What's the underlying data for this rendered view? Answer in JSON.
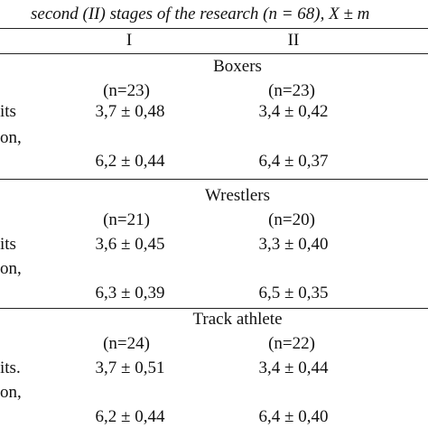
{
  "caption": "second (II) stages of the research (n = 68), X ± m",
  "columns": [
    "I",
    "II"
  ],
  "groups": [
    {
      "name": "Boxers",
      "n": [
        "(n=23)",
        "(n=23)"
      ],
      "row_labels": [
        "its",
        "on,"
      ],
      "row1": [
        "3,7 ± 0,48",
        "3,4 ± 0,42"
      ],
      "row2": [
        "6,2 ± 0,44",
        "6,4 ± 0,37"
      ]
    },
    {
      "name": "Wrestlers",
      "n": [
        "(n=21)",
        "(n=20)"
      ],
      "row_labels": [
        "its",
        "on,"
      ],
      "row1": [
        "3,6 ± 0,45",
        "3,3 ± 0,40"
      ],
      "row2": [
        "6,3 ± 0,39",
        "6,5 ± 0,35"
      ]
    },
    {
      "name": "Track athlete",
      "n": [
        "(n=24)",
        "(n=22)"
      ],
      "row_labels": [
        "its.",
        "on,"
      ],
      "row1": [
        "3,7 ± 0,51",
        "3,4 ± 0,44"
      ],
      "row2": [
        "6,2 ± 0,44",
        "6,4 ± 0,40"
      ]
    }
  ]
}
